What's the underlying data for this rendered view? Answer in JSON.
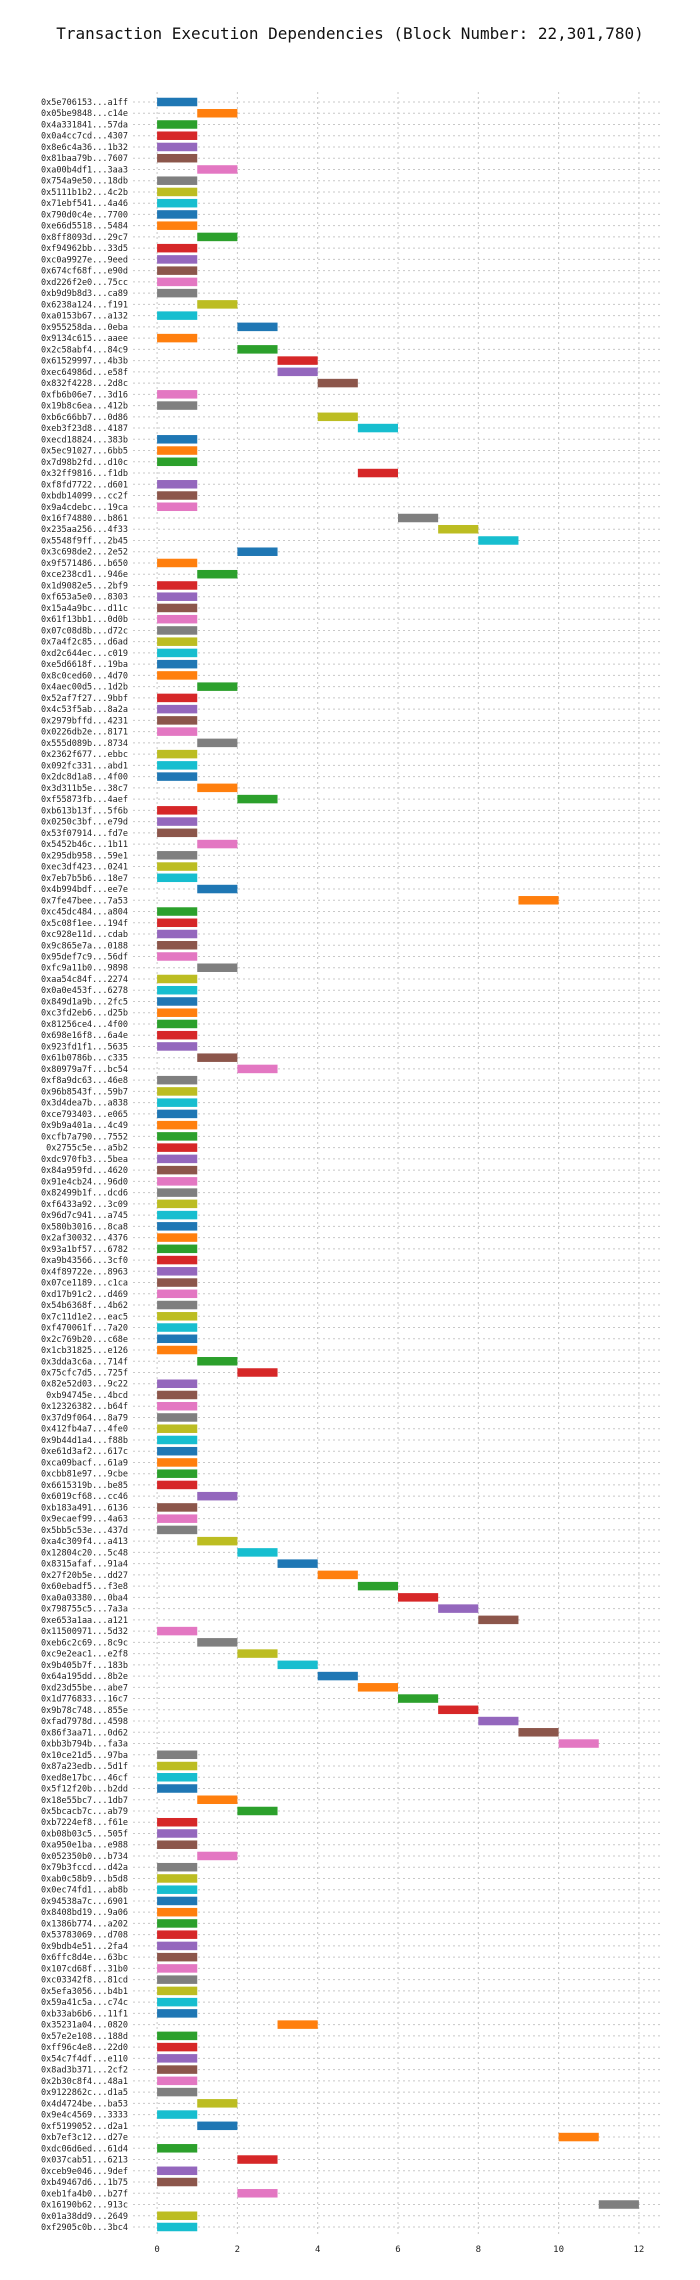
{
  "chart_data": {
    "type": "bar",
    "orientation": "horizontal",
    "title": "Transaction Execution Dependencies (Block Number: 22,301,780)",
    "xlabel": "",
    "ylabel": "",
    "xlim": [
      -0.6,
      12.6
    ],
    "xticks": [
      0,
      2,
      4,
      6,
      8,
      10,
      12
    ],
    "grid": true,
    "bar_length": 1,
    "palette": [
      "#1f77b4",
      "#ff7f0e",
      "#2ca02c",
      "#d62728",
      "#9467bd",
      "#8c564b",
      "#e377c2",
      "#7f7f7f",
      "#bcbd22",
      "#17becf"
    ],
    "transactions": [
      {
        "hash": "0x5e706153...a1ff",
        "start": 0,
        "color": "#1f77b4"
      },
      {
        "hash": "0x05be9848...c14e",
        "start": 1,
        "color": "#ff7f0e"
      },
      {
        "hash": "0x4a331841...57da",
        "start": 0,
        "color": "#2ca02c"
      },
      {
        "hash": "0x0a4cc7cd...4307",
        "start": 0,
        "color": "#d62728"
      },
      {
        "hash": "0x8e6c4a36...1b32",
        "start": 0,
        "color": "#9467bd"
      },
      {
        "hash": "0x81baa79b...7607",
        "start": 0,
        "color": "#8c564b"
      },
      {
        "hash": "0xa00b4df1...3aa3",
        "start": 1,
        "color": "#e377c2"
      },
      {
        "hash": "0x754a9e50...18db",
        "start": 0,
        "color": "#7f7f7f"
      },
      {
        "hash": "0x5111b1b2...4c2b",
        "start": 0,
        "color": "#bcbd22"
      },
      {
        "hash": "0x71ebf541...4a46",
        "start": 0,
        "color": "#17becf"
      },
      {
        "hash": "0x790d0c4e...7700",
        "start": 0,
        "color": "#1f77b4"
      },
      {
        "hash": "0xe66d5518...5484",
        "start": 0,
        "color": "#ff7f0e"
      },
      {
        "hash": "0x8ff8093d...29c7",
        "start": 1,
        "color": "#2ca02c"
      },
      {
        "hash": "0xf94962bb...33d5",
        "start": 0,
        "color": "#d62728"
      },
      {
        "hash": "0xc0a9927e...9eed",
        "start": 0,
        "color": "#9467bd"
      },
      {
        "hash": "0x674cf68f...e90d",
        "start": 0,
        "color": "#8c564b"
      },
      {
        "hash": "0xd226f2e0...75cc",
        "start": 0,
        "color": "#e377c2"
      },
      {
        "hash": "0xb9d9b8d3...ca89",
        "start": 0,
        "color": "#7f7f7f"
      },
      {
        "hash": "0x6238a124...f191",
        "start": 1,
        "color": "#bcbd22"
      },
      {
        "hash": "0xa0153b67...a132",
        "start": 0,
        "color": "#17becf"
      },
      {
        "hash": "0x955258da...0eba",
        "start": 2,
        "color": "#1f77b4"
      },
      {
        "hash": "0x9134c615...aaee",
        "start": 0,
        "color": "#ff7f0e"
      },
      {
        "hash": "0x2c58abf4...84c9",
        "start": 2,
        "color": "#2ca02c"
      },
      {
        "hash": "0x61529997...4b3b",
        "start": 3,
        "color": "#d62728"
      },
      {
        "hash": "0xec64986d...e58f",
        "start": 3,
        "color": "#9467bd"
      },
      {
        "hash": "0x832f4228...2d8c",
        "start": 4,
        "color": "#8c564b"
      },
      {
        "hash": "0xfb6b06e7...3d16",
        "start": 0,
        "color": "#e377c2"
      },
      {
        "hash": "0x19b8c6ea...412b",
        "start": 0,
        "color": "#7f7f7f"
      },
      {
        "hash": "0xb6c66bb7...0d86",
        "start": 4,
        "color": "#bcbd22"
      },
      {
        "hash": "0xeb3f23d8...4187",
        "start": 5,
        "color": "#17becf"
      },
      {
        "hash": "0xecd18824...383b",
        "start": 0,
        "color": "#1f77b4"
      },
      {
        "hash": "0x5ec91027...6bb5",
        "start": 0,
        "color": "#ff7f0e"
      },
      {
        "hash": "0x7d98b2fd...d10c",
        "start": 0,
        "color": "#2ca02c"
      },
      {
        "hash": "0x32ff9816...f1db",
        "start": 5,
        "color": "#d62728"
      },
      {
        "hash": "0xf8fd7722...d601",
        "start": 0,
        "color": "#9467bd"
      },
      {
        "hash": "0xbdb14099...cc2f",
        "start": 0,
        "color": "#8c564b"
      },
      {
        "hash": "0x9a4cdebc...19ca",
        "start": 0,
        "color": "#e377c2"
      },
      {
        "hash": "0x16f74880...b861",
        "start": 6,
        "color": "#7f7f7f"
      },
      {
        "hash": "0x235aa256...4f33",
        "start": 7,
        "color": "#bcbd22"
      },
      {
        "hash": "0x5548f9ff...2b45",
        "start": 8,
        "color": "#17becf"
      },
      {
        "hash": "0x3c698de2...2e52",
        "start": 2,
        "color": "#1f77b4"
      },
      {
        "hash": "0x9f571486...b650",
        "start": 0,
        "color": "#ff7f0e"
      },
      {
        "hash": "0xce238cd1...946e",
        "start": 1,
        "color": "#2ca02c"
      },
      {
        "hash": "0x1d9082e5...2bf9",
        "start": 0,
        "color": "#d62728"
      },
      {
        "hash": "0xf653a5e0...8303",
        "start": 0,
        "color": "#9467bd"
      },
      {
        "hash": "0x15a4a9bc...d11c",
        "start": 0,
        "color": "#8c564b"
      },
      {
        "hash": "0x61f13bb1...0d0b",
        "start": 0,
        "color": "#e377c2"
      },
      {
        "hash": "0x07c08d8b...d72c",
        "start": 0,
        "color": "#7f7f7f"
      },
      {
        "hash": "0x7a4f2c85...d6ad",
        "start": 0,
        "color": "#bcbd22"
      },
      {
        "hash": "0xd2c644ec...c019",
        "start": 0,
        "color": "#17becf"
      },
      {
        "hash": "0xe5d6618f...19ba",
        "start": 0,
        "color": "#1f77b4"
      },
      {
        "hash": "0x8c0ced60...4d70",
        "start": 0,
        "color": "#ff7f0e"
      },
      {
        "hash": "0x4aec00d5...1d2b",
        "start": 1,
        "color": "#2ca02c"
      },
      {
        "hash": "0x52af7f27...9bbf",
        "start": 0,
        "color": "#d62728"
      },
      {
        "hash": "0x4c53f5ab...8a2a",
        "start": 0,
        "color": "#9467bd"
      },
      {
        "hash": "0x2979bffd...4231",
        "start": 0,
        "color": "#8c564b"
      },
      {
        "hash": "0x0226db2e...8171",
        "start": 0,
        "color": "#e377c2"
      },
      {
        "hash": "0x555d089b...8734",
        "start": 1,
        "color": "#7f7f7f"
      },
      {
        "hash": "0x2362f677...ebbc",
        "start": 0,
        "color": "#bcbd22"
      },
      {
        "hash": "0x092fc331...abd1",
        "start": 0,
        "color": "#17becf"
      },
      {
        "hash": "0x2dc8d1a8...4f00",
        "start": 0,
        "color": "#1f77b4"
      },
      {
        "hash": "0x3d311b5e...38c7",
        "start": 1,
        "color": "#ff7f0e"
      },
      {
        "hash": "0xf55873fb...4aef",
        "start": 2,
        "color": "#2ca02c"
      },
      {
        "hash": "0xb613b13f...5f6b",
        "start": 0,
        "color": "#d62728"
      },
      {
        "hash": "0x0250c3bf...e79d",
        "start": 0,
        "color": "#9467bd"
      },
      {
        "hash": "0x53f07914...fd7e",
        "start": 0,
        "color": "#8c564b"
      },
      {
        "hash": "0x5452b46c...1b11",
        "start": 1,
        "color": "#e377c2"
      },
      {
        "hash": "0x295db958...59e1",
        "start": 0,
        "color": "#7f7f7f"
      },
      {
        "hash": "0xec3df423...0241",
        "start": 0,
        "color": "#bcbd22"
      },
      {
        "hash": "0x7eb7b5b6...18e7",
        "start": 0,
        "color": "#17becf"
      },
      {
        "hash": "0x4b994bdf...ee7e",
        "start": 1,
        "color": "#1f77b4"
      },
      {
        "hash": "0x7fe47bee...7a53",
        "start": 9,
        "color": "#ff7f0e"
      },
      {
        "hash": "0xc45dc484...a804",
        "start": 0,
        "color": "#2ca02c"
      },
      {
        "hash": "0x5c08f1ee...194f",
        "start": 0,
        "color": "#d62728"
      },
      {
        "hash": "0xc928e11d...cdab",
        "start": 0,
        "color": "#9467bd"
      },
      {
        "hash": "0x9c865e7a...0188",
        "start": 0,
        "color": "#8c564b"
      },
      {
        "hash": "0x95def7c9...56df",
        "start": 0,
        "color": "#e377c2"
      },
      {
        "hash": "0xfc9a11b0...9898",
        "start": 1,
        "color": "#7f7f7f"
      },
      {
        "hash": "0xaa54c84f...2274",
        "start": 0,
        "color": "#bcbd22"
      },
      {
        "hash": "0x0a0e453f...6278",
        "start": 0,
        "color": "#17becf"
      },
      {
        "hash": "0x849d1a9b...2fc5",
        "start": 0,
        "color": "#1f77b4"
      },
      {
        "hash": "0xc3fd2eb6...d25b",
        "start": 0,
        "color": "#ff7f0e"
      },
      {
        "hash": "0x81256ce4...4f00",
        "start": 0,
        "color": "#2ca02c"
      },
      {
        "hash": "0x698e16f8...6a4e",
        "start": 0,
        "color": "#d62728"
      },
      {
        "hash": "0x923fd1f1...5635",
        "start": 0,
        "color": "#9467bd"
      },
      {
        "hash": "0x61b0786b...c335",
        "start": 1,
        "color": "#8c564b"
      },
      {
        "hash": "0x80979a7f...bc54",
        "start": 2,
        "color": "#e377c2"
      },
      {
        "hash": "0xf8a9dc63...46e8",
        "start": 0,
        "color": "#7f7f7f"
      },
      {
        "hash": "0x96b8543f...59b7",
        "start": 0,
        "color": "#bcbd22"
      },
      {
        "hash": "0x3d4dea7b...a838",
        "start": 0,
        "color": "#17becf"
      },
      {
        "hash": "0xce793403...e065",
        "start": 0,
        "color": "#1f77b4"
      },
      {
        "hash": "0x9b9a401a...4c49",
        "start": 0,
        "color": "#ff7f0e"
      },
      {
        "hash": "0xcfb7a790...7552",
        "start": 0,
        "color": "#2ca02c"
      },
      {
        "hash": "0x2755c5e...a5b2",
        "start": 0,
        "color": "#d62728"
      },
      {
        "hash": "0xdc970fb3...5bea",
        "start": 0,
        "color": "#9467bd"
      },
      {
        "hash": "0x84a959fd...4620",
        "start": 0,
        "color": "#8c564b"
      },
      {
        "hash": "0x91e4cb24...96d0",
        "start": 0,
        "color": "#e377c2"
      },
      {
        "hash": "0x82499b1f...dcd6",
        "start": 0,
        "color": "#7f7f7f"
      },
      {
        "hash": "0xf6433a92...3c09",
        "start": 0,
        "color": "#bcbd22"
      },
      {
        "hash": "0x96d7c941...a745",
        "start": 0,
        "color": "#17becf"
      },
      {
        "hash": "0x580b3016...8ca8",
        "start": 0,
        "color": "#1f77b4"
      },
      {
        "hash": "0x2af30032...4376",
        "start": 0,
        "color": "#ff7f0e"
      },
      {
        "hash": "0x93a1bf57...6782",
        "start": 0,
        "color": "#2ca02c"
      },
      {
        "hash": "0xa9b43566...3cf0",
        "start": 0,
        "color": "#d62728"
      },
      {
        "hash": "0x4f89722e...8963",
        "start": 0,
        "color": "#9467bd"
      },
      {
        "hash": "0x07ce1189...c1ca",
        "start": 0,
        "color": "#8c564b"
      },
      {
        "hash": "0xd17b91c2...d469",
        "start": 0,
        "color": "#e377c2"
      },
      {
        "hash": "0x54b6368f...4b62",
        "start": 0,
        "color": "#7f7f7f"
      },
      {
        "hash": "0x7c11d1e2...eac5",
        "start": 0,
        "color": "#bcbd22"
      },
      {
        "hash": "0xf470061f...7a20",
        "start": 0,
        "color": "#17becf"
      },
      {
        "hash": "0x2c769b20...c68e",
        "start": 0,
        "color": "#1f77b4"
      },
      {
        "hash": "0x1cb31825...e126",
        "start": 0,
        "color": "#ff7f0e"
      },
      {
        "hash": "0x3dda3c6a...714f",
        "start": 1,
        "color": "#2ca02c"
      },
      {
        "hash": "0x75cfc7d5...725f",
        "start": 2,
        "color": "#d62728"
      },
      {
        "hash": "0x82e52d03...9c22",
        "start": 0,
        "color": "#9467bd"
      },
      {
        "hash": "0xb94745e...4bcd",
        "start": 0,
        "color": "#8c564b"
      },
      {
        "hash": "0x12326382...b64f",
        "start": 0,
        "color": "#e377c2"
      },
      {
        "hash": "0x37d9f064...8a79",
        "start": 0,
        "color": "#7f7f7f"
      },
      {
        "hash": "0x412fb4a7...4fe0",
        "start": 0,
        "color": "#bcbd22"
      },
      {
        "hash": "0x9b44d1a4...f88b",
        "start": 0,
        "color": "#17becf"
      },
      {
        "hash": "0xe61d3af2...617c",
        "start": 0,
        "color": "#1f77b4"
      },
      {
        "hash": "0xca09bacf...61a9",
        "start": 0,
        "color": "#ff7f0e"
      },
      {
        "hash": "0xcbb81e97...9cbe",
        "start": 0,
        "color": "#2ca02c"
      },
      {
        "hash": "0x6615319b...be85",
        "start": 0,
        "color": "#d62728"
      },
      {
        "hash": "0x6019cf68...cc46",
        "start": 1,
        "color": "#9467bd"
      },
      {
        "hash": "0xb183a491...6136",
        "start": 0,
        "color": "#8c564b"
      },
      {
        "hash": "0x9ecaef99...4a63",
        "start": 0,
        "color": "#e377c2"
      },
      {
        "hash": "0x5bb5c53e...437d",
        "start": 0,
        "color": "#7f7f7f"
      },
      {
        "hash": "0xa4c309f4...a413",
        "start": 1,
        "color": "#bcbd22"
      },
      {
        "hash": "0x12804c20...5c48",
        "start": 2,
        "color": "#17becf"
      },
      {
        "hash": "0x8315afaf...91a4",
        "start": 3,
        "color": "#1f77b4"
      },
      {
        "hash": "0x27f20b5e...dd27",
        "start": 4,
        "color": "#ff7f0e"
      },
      {
        "hash": "0x60ebadf5...f3e8",
        "start": 5,
        "color": "#2ca02c"
      },
      {
        "hash": "0xa0a03380...0ba4",
        "start": 6,
        "color": "#d62728"
      },
      {
        "hash": "0x798755c5...7a3a",
        "start": 7,
        "color": "#9467bd"
      },
      {
        "hash": "0xe653a1aa...a121",
        "start": 8,
        "color": "#8c564b"
      },
      {
        "hash": "0x11500971...5d32",
        "start": 0,
        "color": "#e377c2"
      },
      {
        "hash": "0xeb6c2c69...8c9c",
        "start": 1,
        "color": "#7f7f7f"
      },
      {
        "hash": "0xc9e2eac1...e2f8",
        "start": 2,
        "color": "#bcbd22"
      },
      {
        "hash": "0x9b405b7f...183b",
        "start": 3,
        "color": "#17becf"
      },
      {
        "hash": "0x64a195dd...8b2e",
        "start": 4,
        "color": "#1f77b4"
      },
      {
        "hash": "0xd23d55be...abe7",
        "start": 5,
        "color": "#ff7f0e"
      },
      {
        "hash": "0x1d776833...16c7",
        "start": 6,
        "color": "#2ca02c"
      },
      {
        "hash": "0x9b78c748...855e",
        "start": 7,
        "color": "#d62728"
      },
      {
        "hash": "0xfad7978d...4598",
        "start": 8,
        "color": "#9467bd"
      },
      {
        "hash": "0x86f3aa71...0d62",
        "start": 9,
        "color": "#8c564b"
      },
      {
        "hash": "0xbb3b794b...fa3a",
        "start": 10,
        "color": "#e377c2"
      },
      {
        "hash": "0x10ce21d5...97ba",
        "start": 0,
        "color": "#7f7f7f"
      },
      {
        "hash": "0x87a23edb...5d1f",
        "start": 0,
        "color": "#bcbd22"
      },
      {
        "hash": "0xed8e17bc...46cf",
        "start": 0,
        "color": "#17becf"
      },
      {
        "hash": "0x5f12f20b...b2dd",
        "start": 0,
        "color": "#1f77b4"
      },
      {
        "hash": "0x18e55bc7...1db7",
        "start": 1,
        "color": "#ff7f0e"
      },
      {
        "hash": "0x5bcacb7c...ab79",
        "start": 2,
        "color": "#2ca02c"
      },
      {
        "hash": "0xb7224ef8...f61e",
        "start": 0,
        "color": "#d62728"
      },
      {
        "hash": "0xb08b03c5...505f",
        "start": 0,
        "color": "#9467bd"
      },
      {
        "hash": "0xa950e1ba...e988",
        "start": 0,
        "color": "#8c564b"
      },
      {
        "hash": "0x052350b0...b734",
        "start": 1,
        "color": "#e377c2"
      },
      {
        "hash": "0x79b3fccd...d42a",
        "start": 0,
        "color": "#7f7f7f"
      },
      {
        "hash": "0xab0c58b9...b5d8",
        "start": 0,
        "color": "#bcbd22"
      },
      {
        "hash": "0x0ec74fd1...ab8b",
        "start": 0,
        "color": "#17becf"
      },
      {
        "hash": "0x94538a7c...6901",
        "start": 0,
        "color": "#1f77b4"
      },
      {
        "hash": "0x8408bd19...9a06",
        "start": 0,
        "color": "#ff7f0e"
      },
      {
        "hash": "0x1386b774...a202",
        "start": 0,
        "color": "#2ca02c"
      },
      {
        "hash": "0x53783069...d708",
        "start": 0,
        "color": "#d62728"
      },
      {
        "hash": "0x9bdb4e51...2fa4",
        "start": 0,
        "color": "#9467bd"
      },
      {
        "hash": "0x6ffc8d4e...63bc",
        "start": 0,
        "color": "#8c564b"
      },
      {
        "hash": "0x107cd68f...31b0",
        "start": 0,
        "color": "#e377c2"
      },
      {
        "hash": "0xc03342f8...81cd",
        "start": 0,
        "color": "#7f7f7f"
      },
      {
        "hash": "0x5efa3056...b4b1",
        "start": 0,
        "color": "#bcbd22"
      },
      {
        "hash": "0x59a41c5a...c74c",
        "start": 0,
        "color": "#17becf"
      },
      {
        "hash": "0xb33ab6b6...11f1",
        "start": 0,
        "color": "#1f77b4"
      },
      {
        "hash": "0x35231a04...0820",
        "start": 3,
        "color": "#ff7f0e"
      },
      {
        "hash": "0x57e2e108...188d",
        "start": 0,
        "color": "#2ca02c"
      },
      {
        "hash": "0xff96c4e8...22d0",
        "start": 0,
        "color": "#d62728"
      },
      {
        "hash": "0x54c7f4df...e110",
        "start": 0,
        "color": "#9467bd"
      },
      {
        "hash": "0x8ad3b371...2cf2",
        "start": 0,
        "color": "#8c564b"
      },
      {
        "hash": "0x2b30c8f4...48a1",
        "start": 0,
        "color": "#e377c2"
      },
      {
        "hash": "0x9122862c...d1a5",
        "start": 0,
        "color": "#7f7f7f"
      },
      {
        "hash": "0x4d4724be...ba53",
        "start": 1,
        "color": "#bcbd22"
      },
      {
        "hash": "0x9e4c4569...3333",
        "start": 0,
        "color": "#17becf"
      },
      {
        "hash": "0xf5199052...d2a1",
        "start": 1,
        "color": "#1f77b4"
      },
      {
        "hash": "0xb7ef3c12...d27e",
        "start": 10,
        "color": "#ff7f0e"
      },
      {
        "hash": "0xdc06d6ed...61d4",
        "start": 0,
        "color": "#2ca02c"
      },
      {
        "hash": "0x037cab51...6213",
        "start": 2,
        "color": "#d62728"
      },
      {
        "hash": "0xceb9e046...9def",
        "start": 0,
        "color": "#9467bd"
      },
      {
        "hash": "0xb49467d6...1b75",
        "start": 0,
        "color": "#8c564b"
      },
      {
        "hash": "0xeb1fa4b0...b27f",
        "start": 2,
        "color": "#e377c2"
      },
      {
        "hash": "0x16190b62...913c",
        "start": 11,
        "color": "#7f7f7f"
      },
      {
        "hash": "0x01a38dd9...2649",
        "start": 0,
        "color": "#bcbd22"
      },
      {
        "hash": "0xf2905c0b...3bc4",
        "start": 0,
        "color": "#17becf"
      }
    ]
  }
}
